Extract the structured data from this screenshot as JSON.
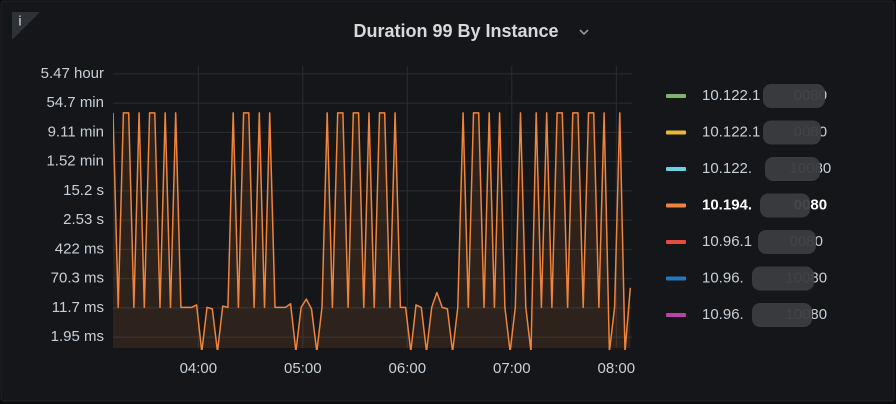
{
  "chart_data": {
    "type": "line",
    "title": "Duration 99 By Instance",
    "log_scale_y": true,
    "grid": true,
    "legend_position": "right",
    "fill_opacity": 0.12,
    "ylim": [
      1,
      25000000
    ],
    "yticks": [
      {
        "value": 1.95,
        "label": "1.95 ms"
      },
      {
        "value": 11.7,
        "label": "11.7 ms"
      },
      {
        "value": 70.3,
        "label": "70.3 ms"
      },
      {
        "value": 422,
        "label": "422 ms"
      },
      {
        "value": 2530,
        "label": "2.53 s"
      },
      {
        "value": 15200,
        "label": "15.2 s"
      },
      {
        "value": 91200,
        "label": "1.52 min"
      },
      {
        "value": 546600,
        "label": "9.11 min"
      },
      {
        "value": 3282000,
        "label": "54.7 min"
      },
      {
        "value": 19692000,
        "label": "5.47 hour"
      }
    ],
    "xlim": [
      191,
      489
    ],
    "xticks": [
      {
        "value": 240,
        "label": "04:00"
      },
      {
        "value": 300,
        "label": "05:00"
      },
      {
        "value": 360,
        "label": "06:00"
      },
      {
        "value": 420,
        "label": "07:00"
      },
      {
        "value": 480,
        "label": "08:00"
      }
    ],
    "x": [
      191,
      194,
      197,
      200,
      203,
      206,
      209,
      212,
      215,
      218,
      221,
      224,
      227,
      230,
      233,
      236,
      239,
      242,
      245,
      248,
      251,
      254,
      257,
      260,
      263,
      266,
      269,
      272,
      275,
      278,
      281,
      284,
      287,
      290,
      293,
      296,
      299,
      302,
      305,
      308,
      311,
      314,
      317,
      320,
      323,
      326,
      329,
      332,
      335,
      338,
      341,
      344,
      347,
      350,
      353,
      356,
      359,
      362,
      365,
      368,
      371,
      374,
      377,
      380,
      383,
      386,
      389,
      392,
      395,
      398,
      401,
      404,
      407,
      410,
      413,
      416,
      419,
      422,
      425,
      428,
      431,
      434,
      437,
      440,
      443,
      446,
      449,
      452,
      455,
      458,
      461,
      464,
      467,
      470,
      473,
      476,
      479,
      482,
      485,
      488
    ],
    "series": [
      {
        "name": "10.122.1        0080",
        "color": "#7eb26d"
      },
      {
        "name": "10.122.1        0080",
        "color": "#eab839"
      },
      {
        "name": "10.122.         10080",
        "color": "#6ed0e0"
      },
      {
        "name": "10.194.          0080",
        "color": "#ef843c",
        "highlighted": true,
        "values": [
          1800000,
          12,
          1800000,
          1800000,
          12,
          1800000,
          12,
          1800000,
          1800000,
          12,
          1800000,
          12,
          1800000,
          12,
          12,
          12,
          14,
          0.8,
          12,
          11,
          0.8,
          13,
          12,
          1800000,
          12,
          1800000,
          1800000,
          12,
          1800000,
          12,
          1800000,
          12,
          12,
          12,
          15,
          0.8,
          12,
          20,
          11,
          0.8,
          12,
          1800000,
          12,
          1800000,
          1800000,
          12,
          1800000,
          1800000,
          12,
          1800000,
          12,
          1800000,
          1800000,
          12,
          1800000,
          12,
          12,
          0.8,
          14,
          12,
          0.8,
          12,
          30,
          12,
          11,
          0.8,
          12,
          1800000,
          12,
          1800000,
          1800000,
          12,
          1800000,
          12,
          1800000,
          12,
          0.8,
          12,
          1800000,
          12,
          0.8,
          1800000,
          12,
          1800000,
          12,
          1800000,
          1800000,
          12,
          1800000,
          1800000,
          12,
          1800000,
          1800000,
          12,
          1800000,
          0.8,
          12,
          1800000,
          0.8,
          40
        ]
      },
      {
        "name": "10.96.1         0080",
        "color": "#e24d42"
      },
      {
        "name": "10.96.          10080",
        "color": "#1f78c1"
      },
      {
        "name": "10.96.          10080",
        "color": "#ba43a9"
      }
    ]
  }
}
